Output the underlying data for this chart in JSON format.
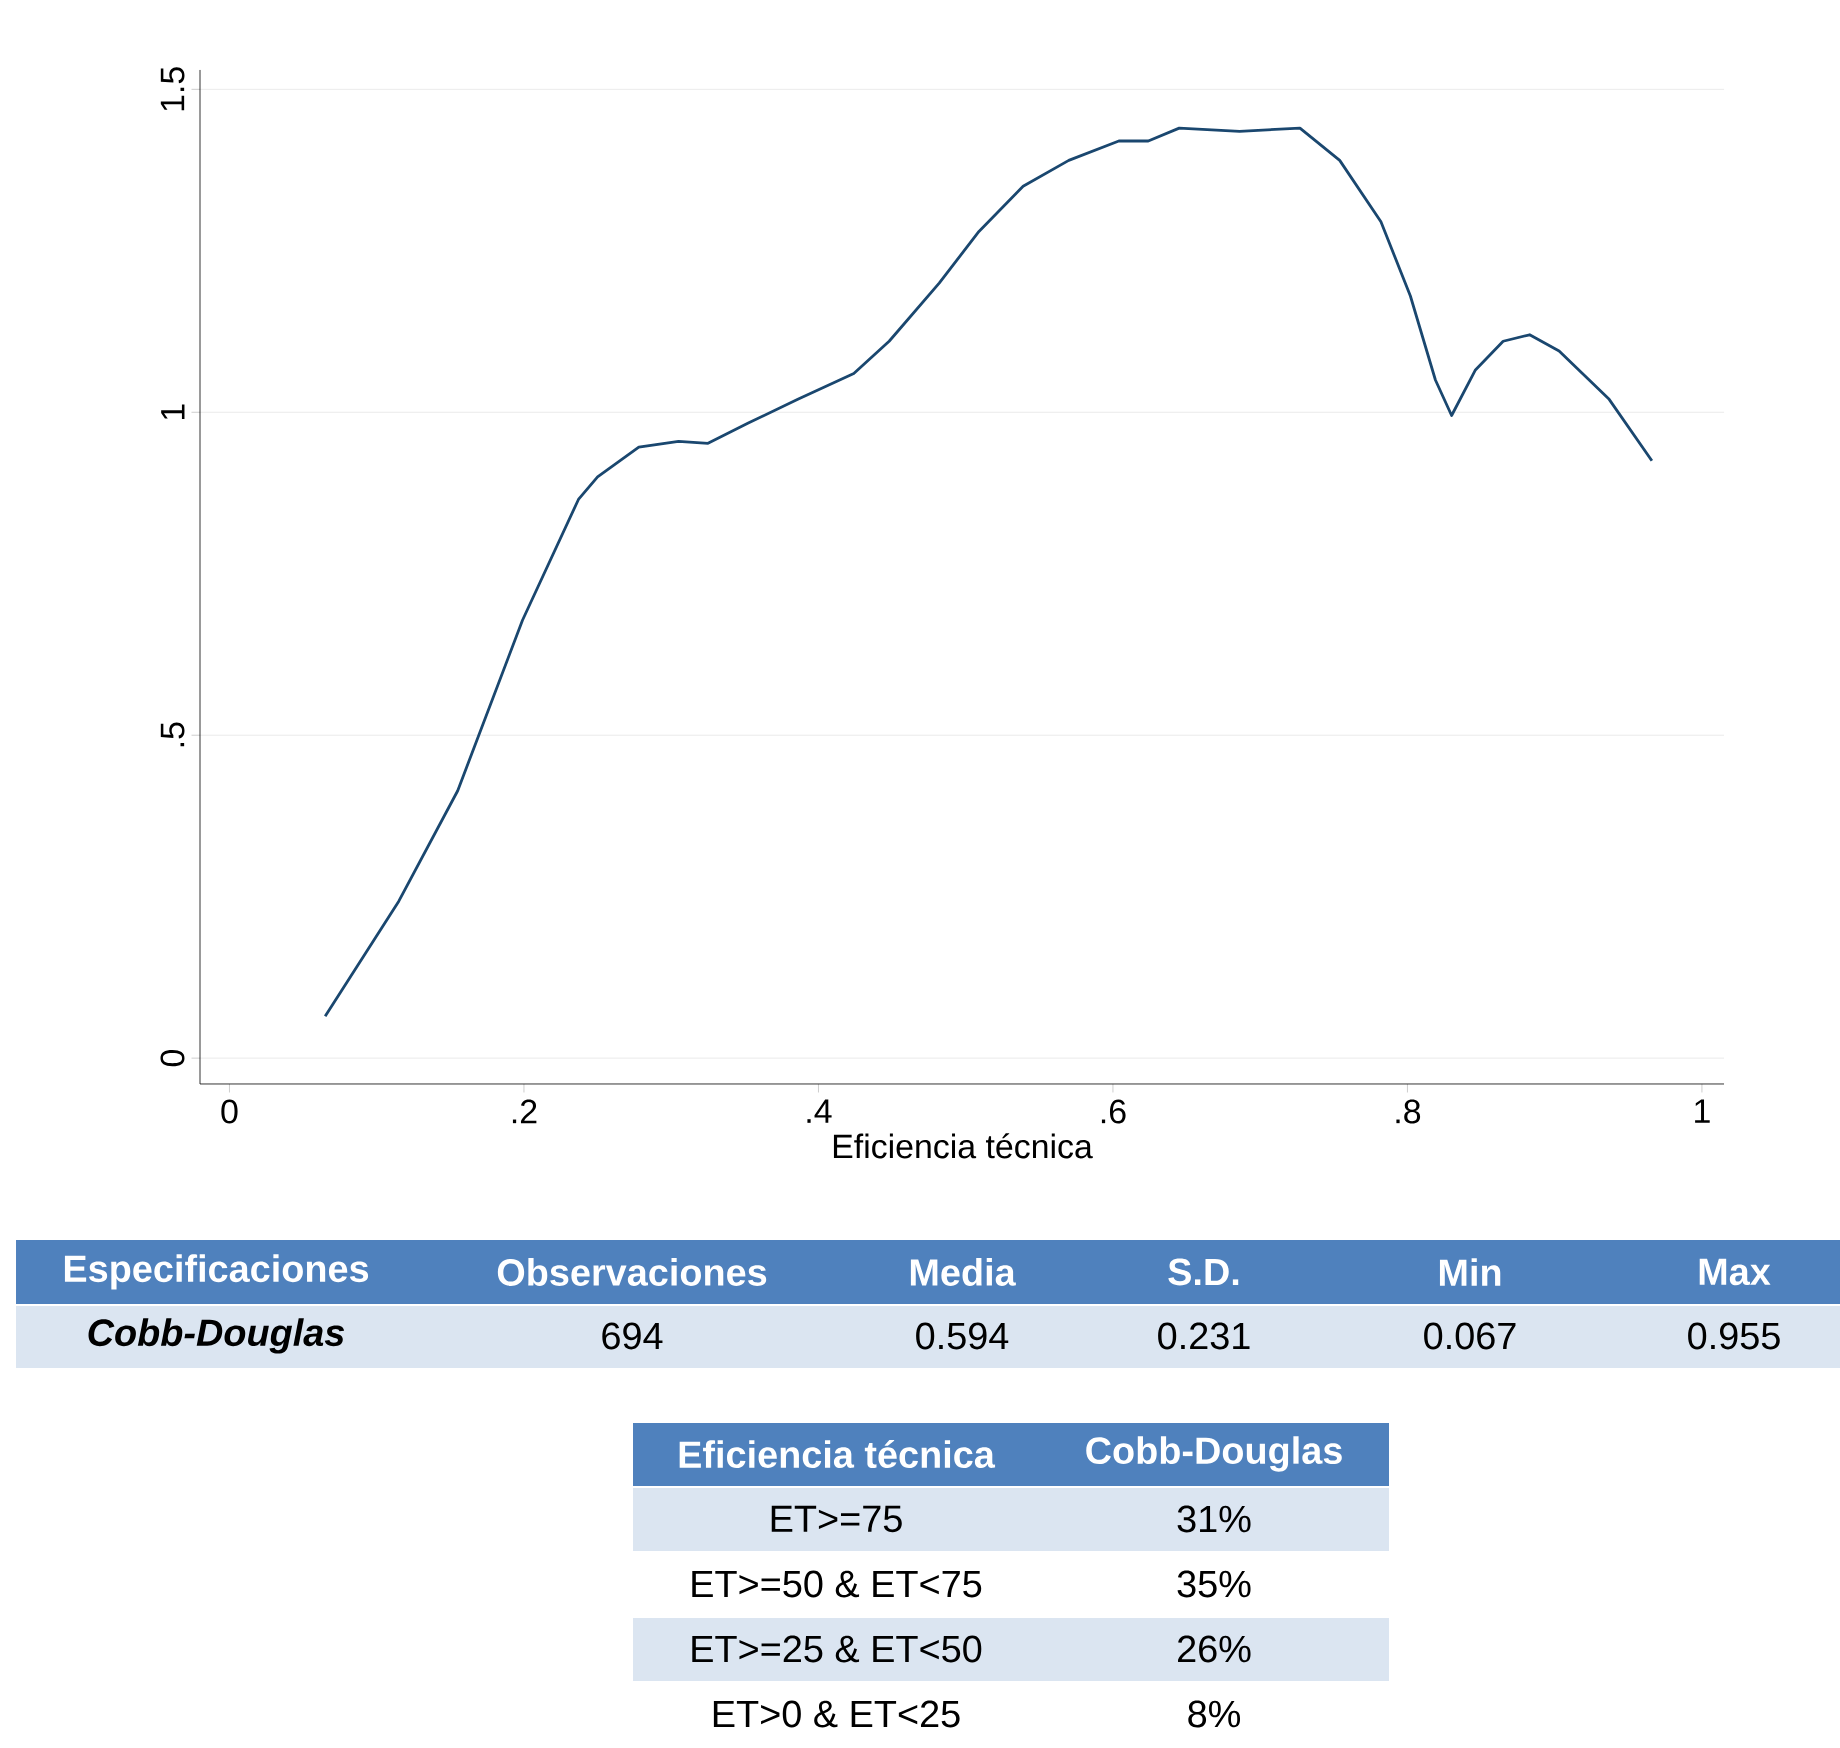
{
  "chart_data": {
    "type": "line",
    "xlabel": "Eficiencia técnica",
    "x": [
      0.065,
      0.115,
      0.155,
      0.199,
      0.237,
      0.25,
      0.278,
      0.305,
      0.325,
      0.352,
      0.386,
      0.424,
      0.448,
      0.482,
      0.509,
      0.539,
      0.57,
      0.604,
      0.624,
      0.645,
      0.686,
      0.727,
      0.754,
      0.782,
      0.802,
      0.819,
      0.83,
      0.846,
      0.865,
      0.883,
      0.903,
      0.937,
      0.966
    ],
    "series": [
      {
        "color": "#1a476f",
        "values": [
          0.065,
          0.243,
          0.414,
          0.678,
          0.865,
          0.9,
          0.946,
          0.955,
          0.952,
          0.983,
          1.02,
          1.06,
          1.11,
          1.2,
          1.28,
          1.35,
          1.39,
          1.42,
          1.42,
          1.44,
          1.435,
          1.44,
          1.39,
          1.295,
          1.18,
          1.05,
          0.995,
          1.065,
          1.11,
          1.12,
          1.095,
          1.02,
          0.925
        ]
      }
    ],
    "xlim": [
      -0.02,
      1.015
    ],
    "ylim": [
      -0.04,
      1.53
    ],
    "xticks": [
      0,
      {
        "value": 0.2,
        "label": ".2"
      },
      {
        "value": 0.4,
        "label": ".4"
      },
      {
        "value": 0.6,
        "label": ".6"
      },
      {
        "value": 0.8,
        "label": ".8"
      },
      1
    ],
    "yticks": [
      0,
      {
        "value": 0.5,
        "label": ".5"
      },
      1,
      1.5
    ],
    "grid": "y",
    "line_style": "solid",
    "marker": "none",
    "annotations": [
      "Especificaciones",
      "Observaciones",
      "Media",
      "S.D.",
      "Min",
      "Max",
      "Cobb-Douglas",
      "694",
      "0.594",
      "0.231",
      "0.067",
      "0.955",
      "Eficiencia técnica",
      "Cobb-Douglas",
      "ET>=75",
      "31%",
      "ET>=50 & ET<75",
      "35%",
      "ET>=25 & ET<50",
      "26%",
      "ET>0 & ET<25",
      "8%"
    ]
  }
}
